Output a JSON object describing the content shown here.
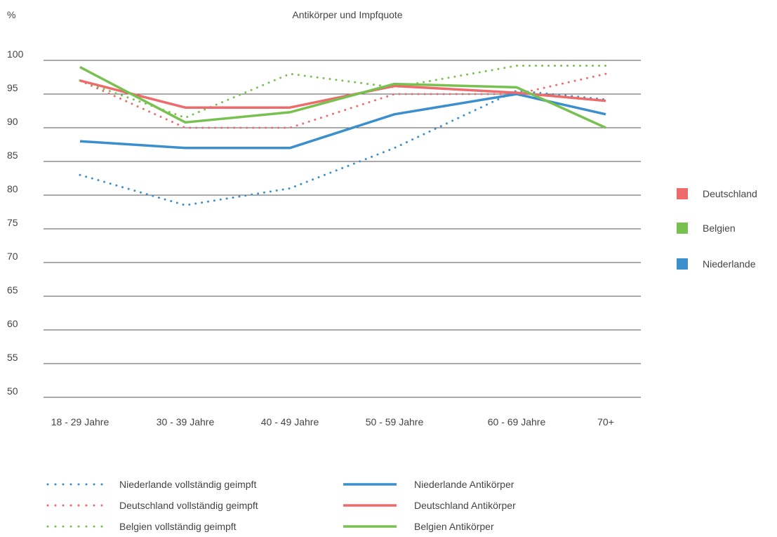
{
  "chart_data": {
    "type": "line",
    "title": "Antikörper und Impfquote",
    "ylabel": "%",
    "xlabel": "",
    "ylim": [
      50,
      100
    ],
    "yticks": [
      50,
      55,
      60,
      65,
      70,
      75,
      80,
      85,
      90,
      95,
      100
    ],
    "categories": [
      "18 - 29 Jahre",
      "30 - 39 Jahre",
      "40 - 49 Jahre",
      "50 - 59 Jahre",
      "60 - 69 Jahre",
      "70+"
    ],
    "grid": "horizontal",
    "legend_placement": "right and bottom",
    "country_legend": [
      {
        "label": "Deutschland",
        "color": "#ee6b6b"
      },
      {
        "label": "Belgien",
        "color": "#78c04f"
      },
      {
        "label": "Niederlande",
        "color": "#3a8fcc"
      }
    ],
    "series": [
      {
        "name": "Niederlande vollständig geimpft",
        "style": "dotted",
        "color": "#3a8fcc",
        "values": [
          83,
          78.5,
          81,
          87,
          95.5,
          94.2
        ]
      },
      {
        "name": "Deutschland vollständig geimpft",
        "style": "dotted",
        "color": "#ee6b6b",
        "values": [
          97,
          90,
          90,
          95,
          95,
          98
        ]
      },
      {
        "name": "Belgien vollständig geimpft",
        "style": "dotted",
        "color": "#78c04f",
        "values": [
          97,
          91.5,
          98,
          96,
          99.2,
          99.2
        ]
      },
      {
        "name": "Niederlande Antikörper",
        "style": "solid",
        "color": "#3a8fcc",
        "values": [
          88,
          87,
          87,
          92,
          95,
          92
        ]
      },
      {
        "name": "Deutschland Antikörper",
        "style": "solid",
        "color": "#ee6b6b",
        "values": [
          97,
          93,
          93,
          96.2,
          95.2,
          94
        ]
      },
      {
        "name": "Belgien Antikörper",
        "style": "solid",
        "color": "#78c04f",
        "values": [
          99,
          90.8,
          92.3,
          96.5,
          96,
          90
        ]
      }
    ]
  }
}
